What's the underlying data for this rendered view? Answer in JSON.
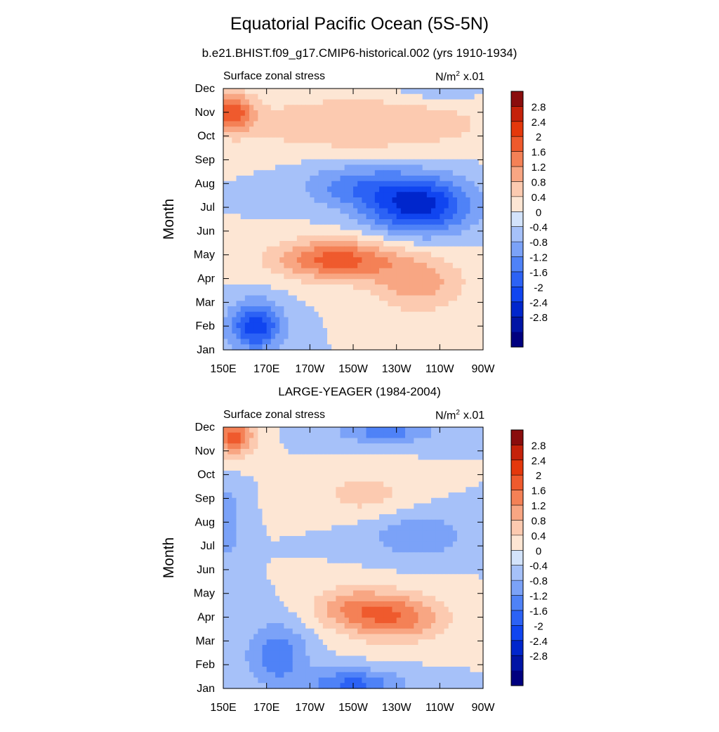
{
  "title": "Equatorial Pacific Ocean (5S-5N)",
  "colors": {
    "levels": [
      "#00007f",
      "#0014a5",
      "#0026cc",
      "#1045f0",
      "#2c62f5",
      "#4f82f7",
      "#7ba2f8",
      "#a6c1f9",
      "#d3e3fb",
      "#fde6d4",
      "#fccab0",
      "#f8a683",
      "#f48156",
      "#ef5a2d",
      "#e4380c",
      "#c5220a",
      "#8a0d0d"
    ]
  },
  "chart_data": [
    {
      "type": "heatmap",
      "title": "b.e21.BHIST.f09_g17.CMIP6-historical.002 (yrs 1910-1934)",
      "left_label": "Surface zonal stress",
      "right_label_base": "N/m",
      "right_label_sup": "2",
      "right_label_scale": "x.01",
      "ylabel": "Month",
      "x_ticks": [
        "150E",
        "170E",
        "170W",
        "150W",
        "130W",
        "110W",
        "90W"
      ],
      "y_ticks": [
        "Jan",
        "Feb",
        "Mar",
        "Apr",
        "May",
        "Jun",
        "Jul",
        "Aug",
        "Sep",
        "Oct",
        "Nov",
        "Dec"
      ],
      "xlim": [
        150,
        270
      ],
      "colorbar_labels": [
        "2.8",
        "2.4",
        "2",
        "1.6",
        "1.2",
        "0.8",
        "0.4",
        "0",
        "-0.4",
        "-0.8",
        "-1.2",
        "-1.6",
        "-2",
        "-2.4",
        "-2.8"
      ],
      "centers": [
        {
          "lon": 165,
          "month": 2.0,
          "amp": -1.9,
          "sx": 12,
          "sy": 1.0
        },
        {
          "lon": 202,
          "month": 4.8,
          "amp": 1.8,
          "sx": 28,
          "sy": 0.85
        },
        {
          "lon": 240,
          "month": 3.8,
          "amp": 1.0,
          "sx": 22,
          "sy": 1.2
        },
        {
          "lon": 240,
          "month": 7.1,
          "amp": -2.2,
          "sx": 24,
          "sy": 1.2
        },
        {
          "lon": 210,
          "month": 7.9,
          "amp": -0.9,
          "sx": 25,
          "sy": 0.9
        },
        {
          "lon": 154,
          "month": 11.0,
          "amp": 1.7,
          "sx": 10,
          "sy": 0.8
        },
        {
          "lon": 215,
          "month": 10.5,
          "amp": 0.8,
          "sx": 60,
          "sy": 1.2
        },
        {
          "lon": 250,
          "month": 12.1,
          "amp": -0.5,
          "sx": 20,
          "sy": 0.6
        }
      ]
    },
    {
      "type": "heatmap",
      "title": "LARGE-YEAGER (1984-2004)",
      "left_label": "Surface zonal stress",
      "right_label_base": "N/m",
      "right_label_sup": "2",
      "right_label_scale": "x.01",
      "ylabel": "Month",
      "x_ticks": [
        "150E",
        "170E",
        "170W",
        "150W",
        "130W",
        "110W",
        "90W"
      ],
      "y_ticks": [
        "Jan",
        "Feb",
        "Mar",
        "Apr",
        "May",
        "Jun",
        "Jul",
        "Aug",
        "Sep",
        "Oct",
        "Nov",
        "Dec"
      ],
      "xlim": [
        150,
        270
      ],
      "colorbar_labels": [
        "2.8",
        "2.4",
        "2",
        "1.6",
        "1.2",
        "0.8",
        "0.4",
        "0",
        "-0.4",
        "-0.8",
        "-1.2",
        "-1.6",
        "-2",
        "-2.4",
        "-2.8"
      ],
      "centers": [
        {
          "lon": 175,
          "month": 2.4,
          "amp": -1.1,
          "sx": 14,
          "sy": 1.3
        },
        {
          "lon": 210,
          "month": 1.2,
          "amp": -1.3,
          "sx": 22,
          "sy": 0.6
        },
        {
          "lon": 230,
          "month": 4.0,
          "amp": 1.5,
          "sx": 22,
          "sy": 1.0
        },
        {
          "lon": 208,
          "month": 4.4,
          "amp": 0.9,
          "sx": 18,
          "sy": 0.9
        },
        {
          "lon": 155,
          "month": 11.6,
          "amp": 1.8,
          "sx": 9,
          "sy": 0.8
        },
        {
          "lon": 215,
          "month": 9.2,
          "amp": 0.6,
          "sx": 20,
          "sy": 0.9
        },
        {
          "lon": 240,
          "month": 7.4,
          "amp": -0.8,
          "sx": 22,
          "sy": 0.9
        },
        {
          "lon": 225,
          "month": 11.8,
          "amp": -1.0,
          "sx": 22,
          "sy": 0.5
        },
        {
          "lon": 152,
          "month": 8.0,
          "amp": -0.8,
          "sx": 6,
          "sy": 1.5
        }
      ]
    }
  ]
}
